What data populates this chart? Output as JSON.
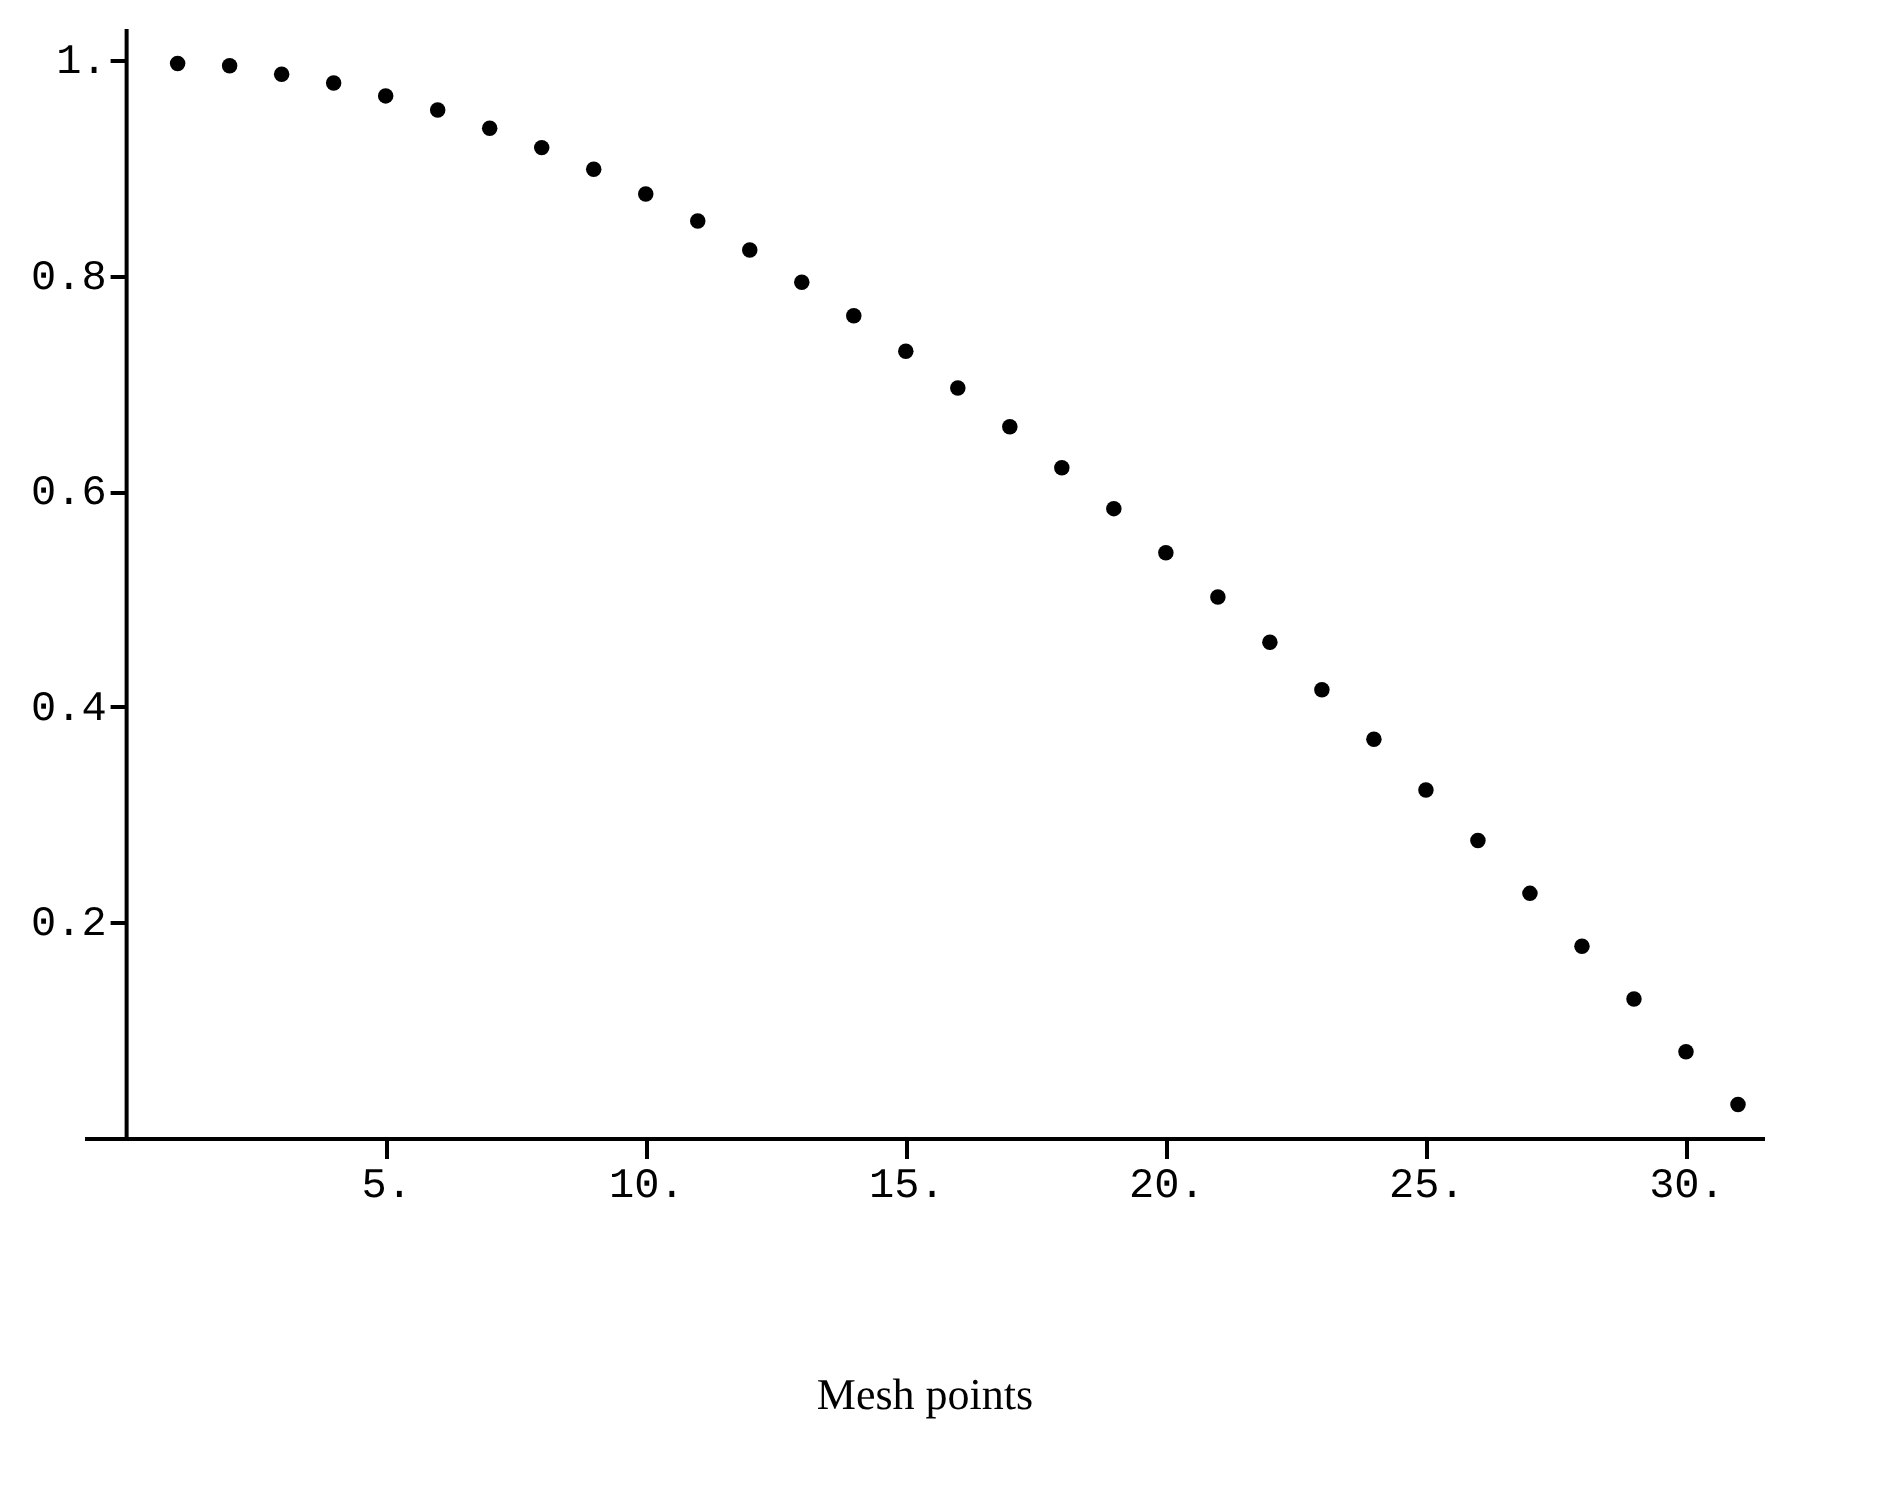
{
  "chart_data": {
    "type": "scatter",
    "xlabel": "Mesh points",
    "x": [
      1,
      2,
      3,
      4,
      5,
      6,
      7,
      8,
      9,
      10,
      11,
      12,
      13,
      14,
      15,
      16,
      17,
      18,
      19,
      20,
      21,
      22,
      23,
      24,
      25,
      26,
      27,
      28,
      29,
      30,
      31
    ],
    "values": [
      0.997,
      0.995,
      0.987,
      0.979,
      0.967,
      0.954,
      0.937,
      0.919,
      0.899,
      0.876,
      0.851,
      0.824,
      0.794,
      0.763,
      0.73,
      0.696,
      0.66,
      0.622,
      0.584,
      0.543,
      0.502,
      0.46,
      0.416,
      0.37,
      0.323,
      0.276,
      0.227,
      0.178,
      0.129,
      0.08,
      0.031
    ],
    "color": "#000000",
    "marker": "circle",
    "xlim": [
      -0.8,
      31.5
    ],
    "ylim": [
      0,
      1.03
    ],
    "xticks": [
      {
        "value": 5,
        "label": "5."
      },
      {
        "value": 10,
        "label": "10."
      },
      {
        "value": 15,
        "label": "15."
      },
      {
        "value": 20,
        "label": "20."
      },
      {
        "value": 25,
        "label": "25."
      },
      {
        "value": 30,
        "label": "30."
      }
    ],
    "yticks": [
      {
        "value": 0.2,
        "label": "0.2"
      },
      {
        "value": 0.4,
        "label": "0.4"
      },
      {
        "value": 0.6,
        "label": "0.6"
      },
      {
        "value": 0.8,
        "label": "0.8"
      },
      {
        "value": 1,
        "label": "1."
      }
    ],
    "grid": false
  }
}
